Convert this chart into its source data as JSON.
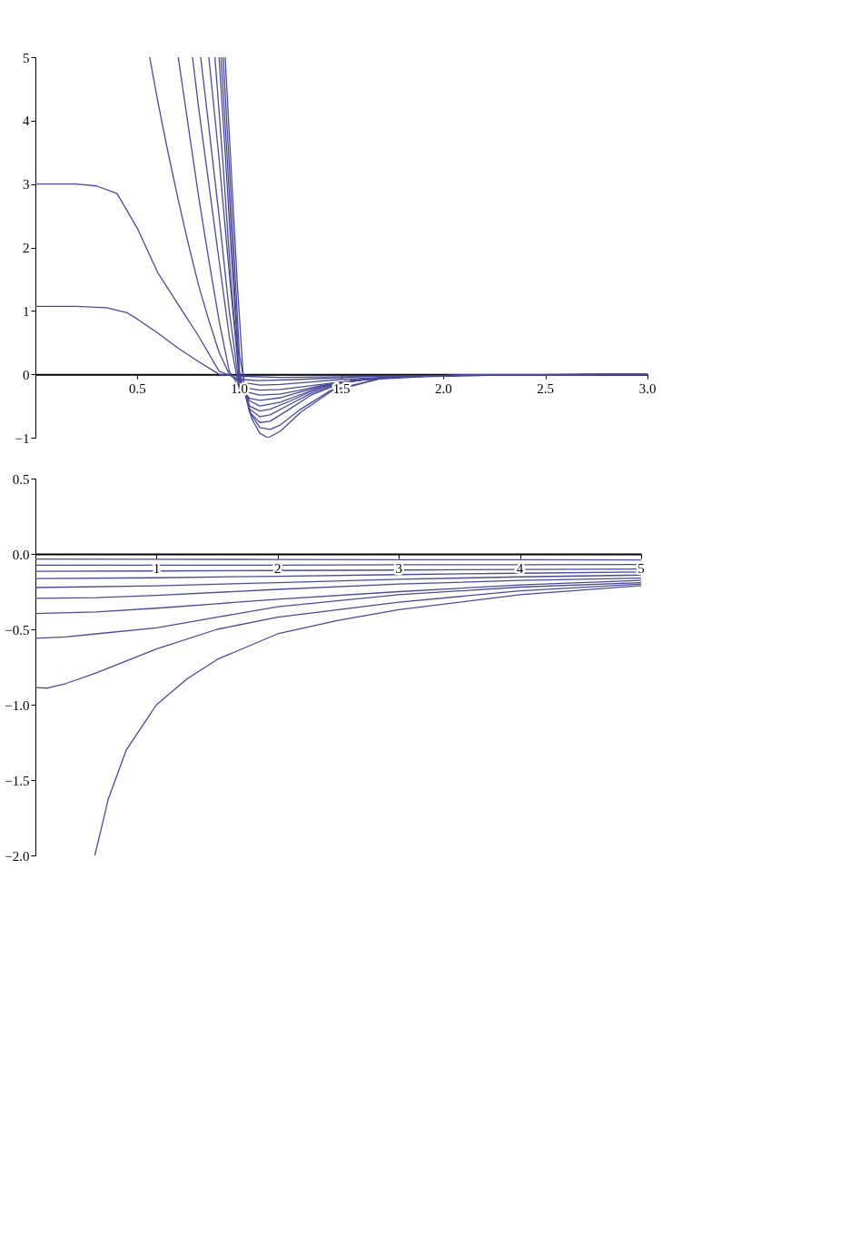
{
  "chart_data": [
    {
      "type": "line",
      "xlim": [
        0,
        3
      ],
      "ylim": [
        -1,
        5
      ],
      "grid": false,
      "xticks": [
        0.5,
        {
          "value": 1,
          "label": "1.0"
        },
        1.5,
        {
          "value": 2,
          "label": "2.0"
        },
        2.5,
        {
          "value": 3,
          "label": "3.0"
        }
      ],
      "yticks": [
        {
          "value": -1,
          "label": "−1"
        },
        0,
        1,
        2,
        3,
        4,
        5
      ],
      "series": [
        {
          "color": "#4a4a9c",
          "x": [
            0,
            0.2,
            0.35,
            0.45,
            0.5,
            0.6,
            0.7,
            0.8,
            0.9,
            1.0,
            1.2,
            1.5,
            2.0,
            3.0
          ],
          "values": [
            1.07,
            1.07,
            1.05,
            0.97,
            0.87,
            0.65,
            0.41,
            0.2,
            0,
            -0.03,
            -0.05,
            -0.04,
            -0.02,
            0
          ]
        },
        {
          "color": "#4a4a9c",
          "x": [
            0,
            0.2,
            0.3,
            0.4,
            0.5,
            0.6,
            0.7,
            0.8,
            0.9,
            1.0,
            1.1,
            1.3,
            1.6,
            2.0,
            3.0
          ],
          "values": [
            3.0,
            3.0,
            2.97,
            2.85,
            2.3,
            1.6,
            1.1,
            0.6,
            0.05,
            -0.08,
            -0.1,
            -0.08,
            -0.04,
            -0.02,
            0
          ]
        },
        {
          "color": "#4a4a9c",
          "x": [
            0.56,
            0.6,
            0.65,
            0.7,
            0.75,
            0.8,
            0.85,
            0.9,
            0.95,
            1.0,
            1.1,
            1.2,
            1.35,
            1.5,
            1.8,
            2.2,
            3.0
          ],
          "values": [
            5,
            4.3,
            3.5,
            2.75,
            2.05,
            1.4,
            0.85,
            0.35,
            0,
            -0.12,
            -0.17,
            -0.16,
            -0.12,
            -0.08,
            -0.04,
            -0.01,
            0
          ]
        },
        {
          "color": "#4a4a9c",
          "x": [
            0.7,
            0.75,
            0.8,
            0.85,
            0.9,
            0.95,
            1.0,
            1.1,
            1.2,
            1.3,
            1.45,
            1.6,
            1.9,
            2.3,
            3.0
          ],
          "values": [
            5,
            3.9,
            2.8,
            1.8,
            0.85,
            0.05,
            -0.2,
            -0.25,
            -0.24,
            -0.2,
            -0.14,
            -0.09,
            -0.04,
            -0.01,
            0
          ]
        },
        {
          "color": "#4a4a9c",
          "x": [
            0.77,
            0.8,
            0.85,
            0.9,
            0.95,
            1.0,
            1.1,
            1.2,
            1.3,
            1.4,
            1.55,
            1.8,
            2.2,
            3.0
          ],
          "values": [
            5,
            4.2,
            3.0,
            1.8,
            0.6,
            -0.25,
            -0.33,
            -0.31,
            -0.25,
            -0.18,
            -0.1,
            -0.04,
            -0.01,
            0
          ]
        },
        {
          "color": "#4a4a9c",
          "x": [
            0.81,
            0.85,
            0.9,
            0.95,
            1.0,
            1.05,
            1.1,
            1.2,
            1.3,
            1.4,
            1.55,
            1.8,
            2.2,
            3.0
          ],
          "values": [
            5,
            3.9,
            2.5,
            1.0,
            -0.2,
            -0.38,
            -0.41,
            -0.37,
            -0.28,
            -0.19,
            -0.1,
            -0.04,
            -0.01,
            0
          ]
        },
        {
          "color": "#4a4a9c",
          "x": [
            0.85,
            0.9,
            0.95,
            1.0,
            1.05,
            1.1,
            1.2,
            1.3,
            1.4,
            1.55,
            1.8,
            2.2,
            3.0
          ],
          "values": [
            5,
            3.4,
            1.6,
            -0.1,
            -0.42,
            -0.5,
            -0.44,
            -0.32,
            -0.2,
            -0.1,
            -0.04,
            -0.01,
            0
          ]
        },
        {
          "color": "#4a4a9c",
          "x": [
            0.88,
            0.92,
            0.96,
            1.0,
            1.05,
            1.1,
            1.15,
            1.25,
            1.35,
            1.5,
            1.7,
            2.0,
            3.0
          ],
          "values": [
            5,
            3.3,
            1.4,
            -0.05,
            -0.5,
            -0.58,
            -0.55,
            -0.42,
            -0.27,
            -0.12,
            -0.05,
            -0.02,
            0
          ]
        },
        {
          "color": "#4a4a9c",
          "x": [
            0.9,
            0.93,
            0.96,
            1.0,
            1.05,
            1.1,
            1.15,
            1.25,
            1.35,
            1.5,
            1.7,
            2.0,
            3.0
          ],
          "values": [
            5,
            3.5,
            1.9,
            0,
            -0.55,
            -0.67,
            -0.64,
            -0.47,
            -0.3,
            -0.13,
            -0.05,
            -0.02,
            0
          ]
        },
        {
          "color": "#4a4a9c",
          "x": [
            0.91,
            0.94,
            0.97,
            1.0,
            1.05,
            1.1,
            1.15,
            1.25,
            1.35,
            1.5,
            1.7,
            2.0,
            3.0
          ],
          "values": [
            5,
            3.4,
            1.7,
            0.05,
            -0.6,
            -0.76,
            -0.74,
            -0.54,
            -0.33,
            -0.14,
            -0.05,
            -0.02,
            0
          ]
        },
        {
          "color": "#4a4a9c",
          "x": [
            0.92,
            0.95,
            0.98,
            1.0,
            1.05,
            1.1,
            1.15,
            1.2,
            1.3,
            1.45,
            1.7,
            2.0,
            3.0
          ],
          "values": [
            5,
            3.3,
            1.5,
            0.3,
            -0.6,
            -0.84,
            -0.87,
            -0.8,
            -0.55,
            -0.25,
            -0.06,
            -0.02,
            0
          ]
        },
        {
          "color": "#4a4a9c",
          "x": [
            0.93,
            0.96,
            0.99,
            1.02,
            1.06,
            1.1,
            1.14,
            1.2,
            1.3,
            1.45,
            1.7,
            2.0,
            3.0
          ],
          "values": [
            5,
            3.2,
            1.4,
            -0.1,
            -0.7,
            -0.93,
            -1.0,
            -0.9,
            -0.6,
            -0.27,
            -0.06,
            -0.02,
            0
          ]
        }
      ]
    },
    {
      "type": "line",
      "xlim": [
        0,
        5
      ],
      "ylim": [
        -2,
        0.5
      ],
      "grid": false,
      "xticks": [
        1,
        2,
        3,
        4,
        5
      ],
      "yticks": [
        {
          "value": -2,
          "label": "−2.0"
        },
        {
          "value": -1.5,
          "label": "−1.5"
        },
        {
          "value": -1,
          "label": "−1.0"
        },
        {
          "value": -0.5,
          "label": "−0.5"
        },
        {
          "value": 0,
          "label": "0.0"
        },
        0.5
      ],
      "series": [
        {
          "color": "#4a4a9c",
          "x": [
            0,
            1,
            2,
            3,
            4,
            5
          ],
          "values": [
            -0.034,
            -0.035,
            -0.037,
            -0.038,
            -0.039,
            -0.04
          ]
        },
        {
          "color": "#4a4a9c",
          "x": [
            0,
            1,
            2,
            3,
            4,
            5
          ],
          "values": [
            -0.075,
            -0.075,
            -0.074,
            -0.072,
            -0.071,
            -0.07
          ]
        },
        {
          "color": "#4a4a9c",
          "x": [
            0,
            1,
            2,
            3,
            4,
            5
          ],
          "values": [
            -0.115,
            -0.113,
            -0.11,
            -0.107,
            -0.103,
            -0.1
          ]
        },
        {
          "color": "#4a4a9c",
          "x": [
            0,
            1,
            2,
            3,
            4,
            5
          ],
          "values": [
            -0.163,
            -0.158,
            -0.148,
            -0.137,
            -0.128,
            -0.12
          ]
        },
        {
          "color": "#4a4a9c",
          "x": [
            0,
            1,
            2,
            3,
            4,
            5
          ],
          "values": [
            -0.223,
            -0.212,
            -0.19,
            -0.168,
            -0.152,
            -0.14
          ]
        },
        {
          "color": "#4a4a9c",
          "x": [
            0,
            0.5,
            1,
            2,
            3,
            4,
            5
          ],
          "values": [
            -0.294,
            -0.29,
            -0.275,
            -0.235,
            -0.2,
            -0.176,
            -0.16
          ]
        },
        {
          "color": "#4a4a9c",
          "x": [
            0,
            0.5,
            1,
            1.5,
            2,
            3,
            4,
            5
          ],
          "values": [
            -0.395,
            -0.385,
            -0.36,
            -0.33,
            -0.3,
            -0.25,
            -0.205,
            -0.175
          ]
        },
        {
          "color": "#4a4a9c",
          "x": [
            0,
            0.25,
            0.5,
            1,
            1.5,
            2,
            3,
            4,
            5
          ],
          "values": [
            -0.56,
            -0.55,
            -0.53,
            -0.49,
            -0.42,
            -0.35,
            -0.27,
            -0.22,
            -0.19
          ]
        },
        {
          "color": "#4a4a9c",
          "x": [
            0,
            0.1,
            0.25,
            0.5,
            0.75,
            1,
            1.5,
            2,
            3,
            4,
            5
          ],
          "values": [
            -0.886,
            -0.89,
            -0.86,
            -0.79,
            -0.71,
            -0.63,
            -0.5,
            -0.42,
            -0.32,
            -0.245,
            -0.2
          ]
        },
        {
          "color": "#4a4a9c",
          "x": [
            0.49,
            0.55,
            0.6,
            0.75,
            0.9,
            1,
            1.25,
            1.5,
            2,
            2.5,
            3,
            4,
            5
          ],
          "values": [
            -2.0,
            -1.8,
            -1.63,
            -1.3,
            -1.12,
            -1.0,
            -0.83,
            -0.7,
            -0.53,
            -0.44,
            -0.37,
            -0.27,
            -0.21
          ]
        }
      ]
    }
  ]
}
